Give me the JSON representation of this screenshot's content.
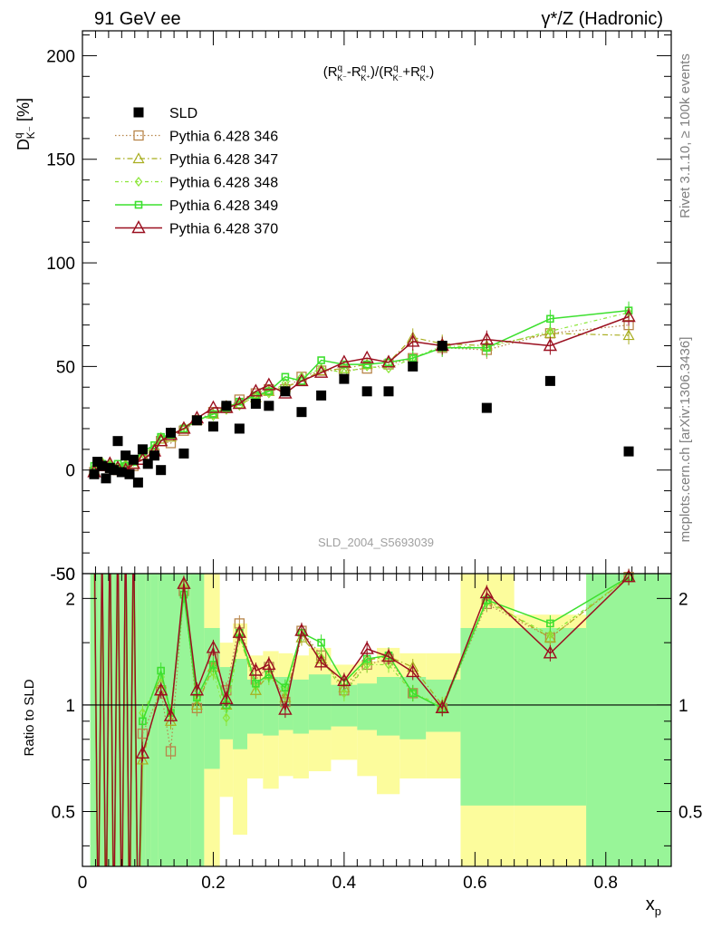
{
  "header": {
    "left_label": "91 GeV ee",
    "right_label": "γ*/Z (Hadronic)"
  },
  "side_text": {
    "rivet": "Rivet 3.1.10, ≥ 100k events",
    "mcplots": "mcplots.cern.ch [arXiv:1306.3436]"
  },
  "chart_data": [
    {
      "type": "scatter",
      "panel": "main",
      "title": "(R^q_K⁻ − R^q_K⁺)/(R^q_K⁻ + R^q_K⁺)",
      "title_display": "(Rq K⁻-Rq K⁺)/(Rq K⁻+Rq K⁺)",
      "ylabel": "Dq K⁻ [%]",
      "xlabel": "xp",
      "xlim": [
        0,
        0.9
      ],
      "ylim": [
        -50,
        212
      ],
      "yticks": [
        -50,
        0,
        50,
        100,
        150,
        200
      ],
      "xticks": [
        0,
        0.2,
        0.4,
        0.6,
        0.8
      ],
      "watermark": "SLD_2004_S5693039",
      "legend_position": "top-left",
      "reference": {
        "name": "SLD",
        "x": [
          0.018,
          0.023,
          0.03,
          0.036,
          0.042,
          0.048,
          0.054,
          0.06,
          0.066,
          0.072,
          0.078,
          0.085,
          0.092,
          0.1,
          0.11,
          0.12,
          0.135,
          0.155,
          0.175,
          0.2,
          0.22,
          0.24,
          0.265,
          0.285,
          0.31,
          0.335,
          0.365,
          0.4,
          0.435,
          0.468,
          0.505,
          0.55,
          0.618,
          0.715,
          0.835
        ],
        "y": [
          -2,
          4,
          2,
          -4,
          1,
          0,
          14,
          -1,
          7,
          -2,
          5,
          -6,
          10,
          3,
          7,
          0,
          18,
          8,
          24,
          21,
          31,
          20,
          32,
          31,
          38,
          28,
          36,
          44,
          38,
          38,
          50,
          60,
          30,
          43,
          9
        ]
      },
      "series": [
        {
          "name": "Pythia 6.428 346",
          "color": "#b8864b",
          "marker": "square-open",
          "dash": "1.5,2.5",
          "x": [
            0.018,
            0.03,
            0.042,
            0.054,
            0.066,
            0.078,
            0.092,
            0.11,
            0.12,
            0.135,
            0.155,
            0.175,
            0.2,
            0.22,
            0.24,
            0.265,
            0.285,
            0.31,
            0.335,
            0.365,
            0.4,
            0.435,
            0.468,
            0.505,
            0.55,
            0.618,
            0.715,
            0.835
          ],
          "y": [
            -1,
            2,
            1,
            0,
            1,
            2,
            5,
            8,
            14,
            13,
            19,
            24,
            28,
            30,
            34,
            37,
            39,
            39,
            45,
            48,
            48,
            49,
            51,
            54,
            59,
            58,
            66,
            70
          ]
        },
        {
          "name": "Pythia 6.428 347",
          "color": "#a8ad1e",
          "marker": "triangle-open",
          "dash": "6,3,1.5,3",
          "x": [
            0.018,
            0.03,
            0.042,
            0.054,
            0.066,
            0.078,
            0.092,
            0.11,
            0.12,
            0.135,
            0.155,
            0.175,
            0.2,
            0.22,
            0.24,
            0.265,
            0.285,
            0.31,
            0.335,
            0.365,
            0.4,
            0.435,
            0.468,
            0.505,
            0.55,
            0.618,
            0.715,
            0.835
          ],
          "y": [
            0,
            3,
            2,
            1,
            2,
            3,
            7,
            10,
            15,
            16,
            20,
            24,
            27,
            31,
            32,
            35,
            38,
            40,
            43,
            48,
            49,
            51,
            52,
            64,
            61,
            60,
            66,
            65
          ]
        },
        {
          "name": "Pythia 6.428 348",
          "color": "#8ae636",
          "marker": "diamond-open",
          "dash": "4,3,1,3",
          "x": [
            0.018,
            0.03,
            0.042,
            0.054,
            0.066,
            0.078,
            0.092,
            0.11,
            0.12,
            0.135,
            0.155,
            0.175,
            0.2,
            0.22,
            0.24,
            0.265,
            0.285,
            0.31,
            0.335,
            0.365,
            0.4,
            0.435,
            0.468,
            0.505,
            0.55,
            0.618,
            0.715,
            0.835
          ],
          "y": [
            1,
            4,
            3,
            2,
            3,
            4,
            8,
            11,
            16,
            17,
            21,
            24,
            26,
            29,
            31,
            36,
            37,
            42,
            45,
            49,
            47,
            50,
            49,
            54,
            60,
            59,
            67,
            76
          ]
        },
        {
          "name": "Pythia 6.428 349",
          "color": "#3de02f",
          "marker": "square-open-small",
          "dash": "",
          "x": [
            0.018,
            0.03,
            0.042,
            0.054,
            0.066,
            0.078,
            0.092,
            0.11,
            0.12,
            0.135,
            0.155,
            0.175,
            0.2,
            0.22,
            0.24,
            0.265,
            0.285,
            0.31,
            0.335,
            0.365,
            0.4,
            0.435,
            0.468,
            0.505,
            0.55,
            0.618,
            0.715,
            0.835
          ],
          "y": [
            2,
            3,
            2,
            3,
            2,
            4,
            9,
            12,
            16,
            17,
            20,
            24,
            27,
            30,
            33,
            36,
            38,
            45,
            43,
            53,
            51,
            51,
            52,
            54,
            59,
            59,
            73,
            77
          ]
        },
        {
          "name": "Pythia 6.428 370",
          "color": "#9b1020",
          "marker": "triangle-open-large",
          "dash": "",
          "x": [
            0.018,
            0.03,
            0.042,
            0.054,
            0.066,
            0.078,
            0.092,
            0.11,
            0.12,
            0.135,
            0.155,
            0.175,
            0.2,
            0.22,
            0.24,
            0.265,
            0.285,
            0.31,
            0.335,
            0.365,
            0.4,
            0.435,
            0.468,
            0.505,
            0.55,
            0.618,
            0.715,
            0.835
          ],
          "y": [
            -1,
            2,
            3,
            1,
            0,
            3,
            5,
            9,
            14,
            17,
            20,
            25,
            30,
            30,
            32,
            38,
            41,
            37,
            43,
            47,
            52,
            54,
            52,
            62,
            60,
            63,
            60,
            74
          ]
        }
      ]
    },
    {
      "type": "line",
      "panel": "ratio",
      "ylabel": "Ratio to SLD",
      "xlabel": "xp",
      "xlim": [
        0,
        0.9
      ],
      "ylim": [
        0.35,
        2.35
      ],
      "yscale": "log",
      "ytick_labels": [
        "0.5",
        "1",
        "2"
      ],
      "yticks": [
        0.5,
        1,
        2
      ],
      "xticks": [
        0,
        0.2,
        0.4,
        0.6,
        0.8
      ],
      "reference_line": 1,
      "bands": {
        "green_colour": "#98f598",
        "yellow_colour": "#fcfc9c",
        "edges": [
          0.012,
          0.024,
          0.036,
          0.048,
          0.06,
          0.072,
          0.084,
          0.096,
          0.104,
          0.116,
          0.126,
          0.144,
          0.166,
          0.186,
          0.21,
          0.23,
          0.252,
          0.276,
          0.3,
          0.322,
          0.346,
          0.38,
          0.42,
          0.45,
          0.485,
          0.525,
          0.578,
          0.66,
          0.77,
          0.9
        ],
        "green_low": [
          0.35,
          0.35,
          0.35,
          0.35,
          0.35,
          0.35,
          0.35,
          0.35,
          0.35,
          0.35,
          0.35,
          0.35,
          0.35,
          0.66,
          0.8,
          0.75,
          0.83,
          0.82,
          0.85,
          0.83,
          0.85,
          0.87,
          0.85,
          0.82,
          0.8,
          0.84,
          0.52,
          0.52,
          0.35
        ],
        "green_high": [
          2.35,
          2.35,
          2.35,
          2.35,
          2.35,
          2.35,
          2.35,
          2.35,
          2.35,
          2.35,
          2.35,
          2.35,
          2.35,
          1.65,
          1.28,
          1.35,
          1.18,
          1.2,
          1.2,
          1.18,
          1.22,
          1.14,
          1.15,
          1.2,
          1.2,
          1.18,
          1.65,
          1.65,
          2.35
        ],
        "yellow_low": [
          0.35,
          0.35,
          0.35,
          0.35,
          0.35,
          0.35,
          0.35,
          0.35,
          0.35,
          0.35,
          0.35,
          0.35,
          0.35,
          0.35,
          0.55,
          0.43,
          0.62,
          0.58,
          0.63,
          0.62,
          0.65,
          0.7,
          0.63,
          0.56,
          0.62,
          0.62,
          0.35,
          0.35,
          0.35
        ],
        "yellow_high": [
          2.35,
          2.35,
          2.35,
          2.35,
          2.35,
          2.35,
          2.35,
          2.35,
          2.35,
          2.35,
          2.35,
          2.35,
          2.35,
          2.35,
          1.5,
          1.7,
          1.38,
          1.42,
          1.4,
          1.38,
          1.45,
          1.3,
          1.33,
          1.45,
          1.4,
          1.4,
          2.35,
          1.8,
          2.35
        ]
      },
      "series": [
        {
          "name": "Pythia 6.428 346",
          "color": "#b8864b",
          "marker": "square-open",
          "x": [
            0.092,
            0.12,
            0.135,
            0.155,
            0.175,
            0.2,
            0.22,
            0.24,
            0.265,
            0.285,
            0.31,
            0.335,
            0.365,
            0.4,
            0.435,
            0.468,
            0.505,
            0.55,
            0.618,
            0.715,
            0.835
          ],
          "y": [
            0.83,
            1.1,
            0.74,
            2.1,
            0.98,
            1.35,
            1.1,
            1.7,
            1.18,
            1.28,
            1.02,
            1.62,
            1.38,
            1.1,
            1.3,
            1.35,
            1.08,
            0.98,
            1.93,
            1.55,
            2.3
          ]
        },
        {
          "name": "Pythia 6.428 347",
          "color": "#a8ad1e",
          "marker": "triangle-open",
          "x": [
            0.092,
            0.12,
            0.135,
            0.155,
            0.175,
            0.2,
            0.22,
            0.24,
            0.265,
            0.285,
            0.31,
            0.335,
            0.365,
            0.4,
            0.435,
            0.468,
            0.505,
            0.55,
            0.618,
            0.715,
            0.835
          ],
          "y": [
            0.7,
            1.15,
            0.9,
            2.2,
            1.0,
            1.28,
            1.0,
            1.6,
            1.1,
            1.22,
            1.05,
            1.55,
            1.35,
            1.12,
            1.34,
            1.37,
            1.28,
            1.0,
            1.98,
            1.55,
            2.3
          ]
        },
        {
          "name": "Pythia 6.428 348",
          "color": "#8ae636",
          "marker": "diamond-open",
          "x": [
            0.092,
            0.12,
            0.135,
            0.155,
            0.175,
            0.2,
            0.22,
            0.24,
            0.265,
            0.285,
            0.31,
            0.335,
            0.365,
            0.4,
            0.435,
            0.468,
            0.505,
            0.55,
            0.618,
            0.715,
            0.835
          ],
          "y": [
            0.95,
            1.2,
            0.95,
            2.15,
            1.05,
            1.24,
            0.92,
            1.56,
            1.13,
            1.2,
            1.1,
            1.6,
            1.36,
            1.08,
            1.3,
            1.3,
            1.08,
            1.0,
            1.95,
            1.58,
            2.3
          ]
        },
        {
          "name": "Pythia 6.428 349",
          "color": "#3de02f",
          "marker": "square-open-small",
          "x": [
            0.092,
            0.12,
            0.135,
            0.155,
            0.175,
            0.2,
            0.22,
            0.24,
            0.265,
            0.285,
            0.31,
            0.335,
            0.365,
            0.4,
            0.435,
            0.468,
            0.505,
            0.55,
            0.618,
            0.715,
            0.835
          ],
          "y": [
            0.9,
            1.25,
            0.95,
            2.05,
            1.05,
            1.3,
            1.0,
            1.6,
            1.15,
            1.22,
            1.12,
            1.6,
            1.5,
            1.16,
            1.35,
            1.38,
            1.08,
            0.98,
            1.98,
            1.7,
            2.3
          ]
        },
        {
          "name": "Pythia 6.428 370",
          "color": "#9b1020",
          "marker": "triangle-open-large",
          "x": [
            0.092,
            0.12,
            0.135,
            0.155,
            0.175,
            0.2,
            0.22,
            0.24,
            0.265,
            0.285,
            0.31,
            0.335,
            0.365,
            0.4,
            0.435,
            0.468,
            0.505,
            0.55,
            0.618,
            0.715,
            0.835
          ],
          "y": [
            0.73,
            1.1,
            0.93,
            2.2,
            1.1,
            1.45,
            1.04,
            1.6,
            1.25,
            1.3,
            0.97,
            1.62,
            1.32,
            1.17,
            1.44,
            1.37,
            1.24,
            0.98,
            2.07,
            1.4,
            2.3
          ]
        }
      ]
    }
  ]
}
